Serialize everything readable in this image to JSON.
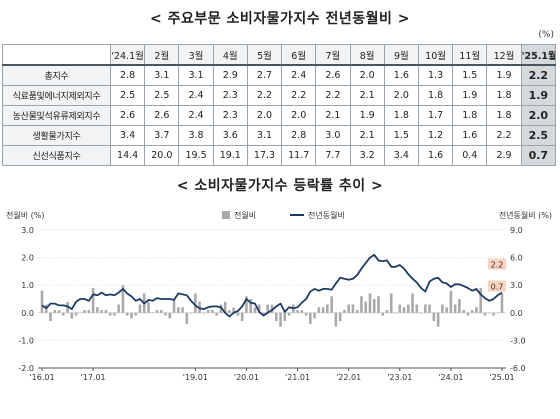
{
  "table": {
    "title": "< 주요부문 소비자물가지수 전년동월비 >",
    "unit": "(%)",
    "headers": [
      "'24.1월",
      "2월",
      "3월",
      "4월",
      "5월",
      "6월",
      "7월",
      "8월",
      "9월",
      "10월",
      "11월",
      "12월",
      "'25.1월"
    ],
    "rows": [
      {
        "label": "총지수",
        "values": [
          "2.8",
          "3.1",
          "3.1",
          "2.9",
          "2.7",
          "2.4",
          "2.6",
          "2.0",
          "1.6",
          "1.3",
          "1.5",
          "1.9",
          "2.2"
        ]
      },
      {
        "label": "식료품및에너지제외지수",
        "values": [
          "2.5",
          "2.5",
          "2.4",
          "2.3",
          "2.2",
          "2.2",
          "2.2",
          "2.1",
          "2.0",
          "1.8",
          "1.9",
          "1.8",
          "1.9"
        ]
      },
      {
        "label": "농산물및석유류제외지수",
        "values": [
          "2.6",
          "2.6",
          "2.4",
          "2.3",
          "2.0",
          "2.0",
          "2.1",
          "1.9",
          "1.8",
          "1.7",
          "1.8",
          "1.8",
          "2.0"
        ]
      },
      {
        "label": "생활물가지수",
        "values": [
          "3.4",
          "3.7",
          "3.8",
          "3.6",
          "3.1",
          "2.8",
          "3.0",
          "2.1",
          "1.5",
          "1.2",
          "1.6",
          "2.2",
          "2.5"
        ]
      },
      {
        "label": "신선식품지수",
        "values": [
          "14.4",
          "20.0",
          "19.5",
          "19.1",
          "17.3",
          "11.7",
          "7.7",
          "3.2",
          "3.4",
          "1.6",
          "0.4",
          "2.9",
          "0.7"
        ]
      }
    ]
  },
  "chart_title": "< 소비자물가지수 등락률 추이 >",
  "chart_data": {
    "type": "bar+line",
    "left_axis_label": "전월비 (%)",
    "right_axis_label": "전년동월비 (%)",
    "left_ticks": [
      "3.0",
      "2.0",
      "1.0",
      "0.0",
      "-1.0",
      "-2.0"
    ],
    "right_ticks": [
      "9.0",
      "6.0",
      "3.0",
      "0.0",
      "-3.0",
      "-6.0"
    ],
    "ylim_left": [
      -2.0,
      3.0
    ],
    "ylim_right": [
      -6.0,
      9.0
    ],
    "x_ticks": [
      "'16.01",
      "'17.01",
      "'19.01",
      "'20.01",
      "'21.01",
      "'22.01",
      "'23.01",
      "'24.01",
      "'25.01"
    ],
    "x_tick_months": [
      0,
      12,
      36,
      48,
      60,
      72,
      84,
      96,
      108
    ],
    "month_count": 109,
    "legend": {
      "bar": "전월비",
      "line": "전년동월비"
    },
    "callouts": [
      {
        "text": "2.2",
        "fill": "#fbd3bf"
      },
      {
        "text": "0.7",
        "fill": "#fbd3bf"
      }
    ],
    "colors": {
      "bar": "#a9a9a9",
      "line": "#1f3b63",
      "grid": "#d5d5d5"
    },
    "mom": [
      0.8,
      0.3,
      -0.3,
      0.1,
      0.1,
      -0.1,
      0.4,
      -0.2,
      -0.1,
      0.0,
      0.1,
      0.1,
      0.9,
      0.2,
      0.1,
      0.1,
      -0.1,
      -0.1,
      0.3,
      1.0,
      -0.1,
      -0.2,
      -0.1,
      0.3,
      0.7,
      0.4,
      0.0,
      0.1,
      0.1,
      -0.1,
      -0.2,
      0.5,
      0.2,
      0.2,
      -0.4,
      0.0,
      0.7,
      0.4,
      0.0,
      0.1,
      0.1,
      -0.1,
      0.3,
      0.4,
      0.1,
      0.2,
      -0.1,
      -0.3,
      0.6,
      0.5,
      0.2,
      0.3,
      -0.1,
      0.3,
      0.3,
      -0.3,
      -0.5,
      -0.3,
      -0.1,
      0.3,
      0.1,
      0.1,
      -0.1,
      -0.4,
      -0.2,
      0.2,
      0.2,
      0.3,
      0.6,
      -0.5,
      -0.3,
      0.1,
      0.3,
      0.3,
      0.1,
      0.6,
      0.4,
      0.7,
      0.5,
      0.6,
      -0.1,
      0.1,
      0.7,
      0.0,
      0.3,
      0.2,
      0.3,
      0.7,
      0.3,
      0.0,
      0.3,
      0.3,
      -0.3,
      -0.5,
      0.3,
      0.2,
      0.8,
      0.3,
      0.5,
      0.1,
      -0.1,
      0.1,
      0.2,
      0.9,
      -0.1,
      0.0,
      -0.1,
      0.0,
      0.7
    ],
    "yoy": [
      0.8,
      0.5,
      1.0,
      1.0,
      0.8,
      0.8,
      0.7,
      0.4,
      1.2,
      1.5,
      1.5,
      1.3,
      2.0,
      1.9,
      2.2,
      1.9,
      2.0,
      1.9,
      2.2,
      2.6,
      2.1,
      1.8,
      1.3,
      1.5,
      1.0,
      1.4,
      1.3,
      1.6,
      1.5,
      1.5,
      1.5,
      1.4,
      2.1,
      2.0,
      1.9,
      1.3,
      0.8,
      0.5,
      0.4,
      0.6,
      0.7,
      0.7,
      0.6,
      0.0,
      -0.4,
      0.0,
      0.2,
      0.7,
      1.5,
      1.1,
      1.0,
      0.1,
      -0.3,
      0.0,
      0.3,
      0.7,
      1.0,
      0.1,
      0.6,
      0.5,
      0.6,
      1.1,
      1.5,
      2.3,
      2.6,
      2.4,
      2.6,
      2.6,
      2.5,
      3.2,
      3.8,
      3.7,
      3.6,
      3.7,
      4.1,
      4.8,
      5.4,
      6.0,
      6.3,
      5.7,
      5.6,
      5.7,
      5.0,
      5.0,
      5.2,
      4.8,
      4.2,
      3.7,
      3.3,
      2.7,
      2.3,
      3.4,
      3.7,
      3.8,
      3.3,
      3.2,
      2.8,
      3.1,
      3.1,
      2.9,
      2.7,
      2.4,
      2.6,
      2.0,
      1.6,
      1.3,
      1.5,
      1.9,
      2.2
    ]
  }
}
